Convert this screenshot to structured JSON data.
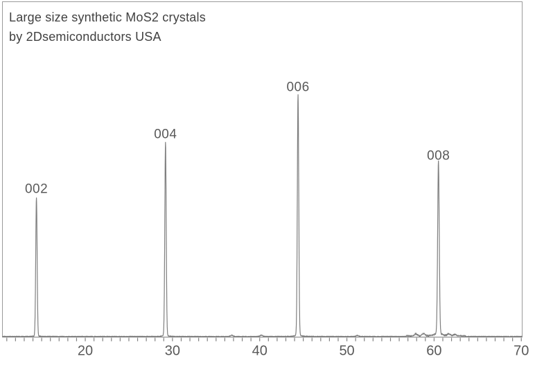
{
  "figure": {
    "title_line1": "Large size synthetic MoS2 crystals",
    "title_line2": "by 2Dsemiconductors USA"
  },
  "colors": {
    "background": "#ffffff",
    "frame": "#9a9a9a",
    "trace": "#7f7f7f",
    "tick": "#7f7f7f",
    "axis_text": "#595959",
    "peak_label_text": "#595959",
    "title_text": "#414141"
  },
  "chart_data": {
    "type": "line",
    "title": "Large size synthetic MoS2 crystals by 2Dsemiconductors USA",
    "xlabel": "",
    "ylabel": "",
    "grid": false,
    "legend": false,
    "x_axis": {
      "min": 10.5,
      "max": 70.1,
      "major_ticks": [
        20,
        30,
        40,
        50,
        60,
        70
      ],
      "minor_tick_step": 1
    },
    "y_axis": {
      "shown": false
    },
    "peaks": [
      {
        "label": "002",
        "two_theta": 14.4,
        "rel_intensity": 0.411,
        "sigma": 0.08,
        "foot_amp": 0.008,
        "foot_gamma": 0.25
      },
      {
        "label": "004",
        "two_theta": 29.2,
        "rel_intensity": 0.574,
        "sigma": 0.08,
        "foot_amp": 0.01,
        "foot_gamma": 0.25
      },
      {
        "label": "006",
        "two_theta": 44.4,
        "rel_intensity": 0.715,
        "sigma": 0.08,
        "foot_amp": 0.01,
        "foot_gamma": 0.28
      },
      {
        "label": "008",
        "two_theta": 60.5,
        "rel_intensity": 0.51,
        "sigma": 0.09,
        "foot_amp": 0.022,
        "foot_gamma": 0.38
      }
    ],
    "noise_bumps": [
      {
        "two_theta": 36.8,
        "height_frac": 0.004
      },
      {
        "two_theta": 40.2,
        "height_frac": 0.004
      },
      {
        "two_theta": 51.2,
        "height_frac": 0.003
      },
      {
        "two_theta": 57.9,
        "height_frac": 0.006
      },
      {
        "two_theta": 58.8,
        "height_frac": 0.007
      },
      {
        "two_theta": 61.7,
        "height_frac": 0.006
      },
      {
        "two_theta": 62.4,
        "height_frac": 0.004
      }
    ]
  }
}
